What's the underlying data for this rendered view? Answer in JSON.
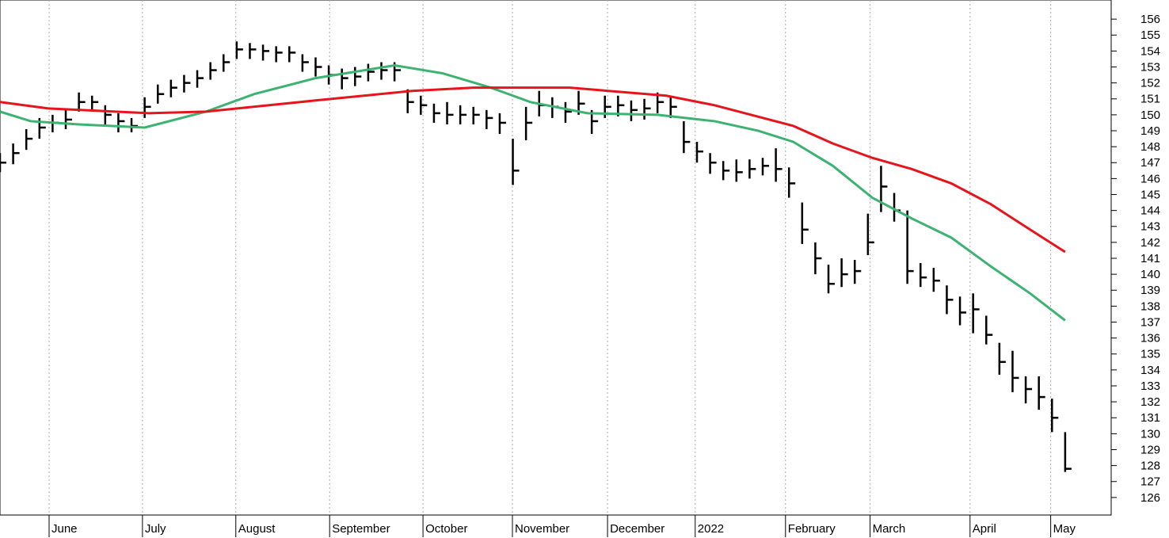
{
  "chart_data": {
    "type": "ohlc",
    "color": "#000000",
    "grid": true,
    "x": [
      0,
      3,
      6,
      9,
      12,
      15,
      18,
      21,
      24,
      27,
      30,
      33,
      36,
      39,
      42,
      45,
      48,
      51,
      54,
      57,
      60,
      63,
      66,
      69,
      72,
      75,
      78,
      81,
      84,
      87,
      90,
      93,
      96,
      99,
      102,
      105,
      108,
      111,
      114,
      117,
      120,
      123,
      126,
      129,
      132,
      135,
      138,
      141,
      144,
      147,
      150,
      153,
      156,
      159,
      162,
      165,
      168,
      171,
      174,
      177,
      180,
      183,
      186,
      189,
      192,
      195,
      198,
      201,
      204,
      207,
      210,
      213,
      216,
      219,
      222,
      225,
      228,
      231,
      234,
      237,
      240,
      243
    ],
    "high": [
      147.6,
      148.2,
      149.1,
      149.8,
      150,
      150.3,
      151.4,
      151.2,
      150.6,
      150.1,
      149.8,
      151.1,
      151.9,
      152.2,
      152.5,
      152.8,
      153.3,
      153.8,
      154.6,
      154.5,
      154.4,
      154.3,
      154.3,
      153.8,
      153.6,
      153.1,
      152.9,
      153,
      153.2,
      153.3,
      153.3,
      151.6,
      151.2,
      150.7,
      150.8,
      150.6,
      150.5,
      150.3,
      150.1,
      148.5,
      150.5,
      151.5,
      151.1,
      150.8,
      151.5,
      150.3,
      151.2,
      151.2,
      150.9,
      151,
      151.4,
      151.2,
      149.6,
      148.3,
      147.6,
      147.1,
      147.2,
      147.2,
      147.3,
      147.9,
      146.7,
      144.5,
      142,
      140.6,
      141,
      140.9,
      143.8,
      146.8,
      145.1,
      144,
      140.7,
      140.4,
      139.3,
      138.6,
      138.8,
      137.4,
      135.7,
      135.2,
      133.6,
      133.6,
      132.2,
      130.1
    ],
    "low": [
      146.4,
      146.9,
      147.8,
      148.5,
      148.9,
      149.1,
      150.2,
      150.2,
      149.4,
      148.9,
      148.9,
      149.8,
      150.7,
      151.1,
      151.4,
      151.7,
      152.2,
      152.7,
      153.5,
      153.5,
      153.4,
      153.3,
      153.3,
      152.7,
      152.4,
      151.9,
      151.6,
      151.8,
      152.1,
      152.2,
      152.1,
      150.1,
      150,
      149.5,
      149.4,
      149.4,
      149.4,
      149.1,
      148.8,
      145.6,
      148.4,
      149.9,
      149.8,
      149.5,
      150,
      148.8,
      149.8,
      149.9,
      149.6,
      149.7,
      150.1,
      149.8,
      147.6,
      147,
      146.3,
      145.9,
      145.8,
      146,
      146.2,
      145.8,
      144.8,
      141.9,
      140,
      138.8,
      139.2,
      139.4,
      141.2,
      143.9,
      143.3,
      139.4,
      139.2,
      138.9,
      137.5,
      136.8,
      136.3,
      135.6,
      133.7,
      132.6,
      131.9,
      131.5,
      130.1,
      127.6
    ],
    "close": [
      147,
      147.6,
      148.5,
      149.2,
      149.5,
      149.7,
      150.8,
      150.8,
      150,
      149.6,
      149.3,
      150.5,
      151.3,
      151.7,
      152,
      152.3,
      152.8,
      153.3,
      154.1,
      154.1,
      154,
      153.9,
      153.9,
      153.3,
      153,
      152.5,
      152.3,
      152.4,
      152.7,
      152.8,
      152.8,
      150.8,
      150.6,
      150.1,
      150,
      150,
      150,
      149.8,
      149.5,
      146.5,
      149.5,
      150.6,
      150.5,
      150.2,
      150.7,
      149.6,
      150.5,
      150.6,
      150.3,
      150.4,
      150.8,
      150.5,
      148.3,
      147.7,
      147,
      146.5,
      146.4,
      146.6,
      146.8,
      146.6,
      145.7,
      142.8,
      141,
      139.4,
      140,
      140.2,
      142,
      145.5,
      144,
      140.2,
      139.8,
      139.6,
      138.4,
      137.6,
      137.8,
      136.2,
      134.5,
      133.5,
      132.8,
      132.3,
      131,
      127.8
    ],
    "series": [
      {
        "type": "line",
        "color": "#3cb371",
        "x": [
          0,
          7,
          18,
          33,
          47,
          58,
          72,
          90,
          101,
          112,
          121,
          134,
          150,
          163,
          173,
          181,
          190,
          199,
          208,
          217,
          226,
          235,
          243
        ],
        "values": [
          150.2,
          149.6,
          149.4,
          149.2,
          150.2,
          151.3,
          152.3,
          153.1,
          152.6,
          151.7,
          150.8,
          150.1,
          150,
          149.6,
          149,
          148.3,
          146.8,
          144.8,
          143.5,
          142.3,
          140.5,
          138.8,
          137.1
        ]
      },
      {
        "type": "line",
        "color": "#e8141c",
        "x": [
          0,
          11,
          34,
          47,
          72,
          94,
          108,
          130,
          152,
          163,
          181,
          190,
          199,
          208,
          217,
          226,
          235,
          243
        ],
        "values": [
          150.8,
          150.4,
          150.1,
          150.2,
          150.9,
          151.5,
          151.7,
          151.7,
          151.2,
          150.6,
          149.3,
          148.2,
          147.3,
          146.6,
          145.7,
          144.4,
          142.8,
          141.4
        ]
      }
    ],
    "xlim": [
      0,
      253.5
    ],
    "xticks": [
      {
        "value": 11.2,
        "label": "June"
      },
      {
        "value": 32.5,
        "label": "July"
      },
      {
        "value": 53.8,
        "label": "August"
      },
      {
        "value": 75.2,
        "label": "September"
      },
      {
        "value": 96.5,
        "label": "October"
      },
      {
        "value": 116.9,
        "label": "November"
      },
      {
        "value": 138.6,
        "label": "December"
      },
      {
        "value": 158.6,
        "label": "2022"
      },
      {
        "value": 179.2,
        "label": "February"
      },
      {
        "value": 198.5,
        "label": "March"
      },
      {
        "value": 221.3,
        "label": "April"
      },
      {
        "value": 239.7,
        "label": "May"
      }
    ],
    "ylim": [
      124.9,
      157.2
    ],
    "yticks": [
      126,
      127,
      128,
      129,
      130,
      131,
      132,
      133,
      134,
      135,
      136,
      137,
      138,
      139,
      140,
      141,
      142,
      143,
      144,
      145,
      146,
      147,
      148,
      149,
      150,
      151,
      152,
      153,
      154,
      155,
      156
    ]
  }
}
